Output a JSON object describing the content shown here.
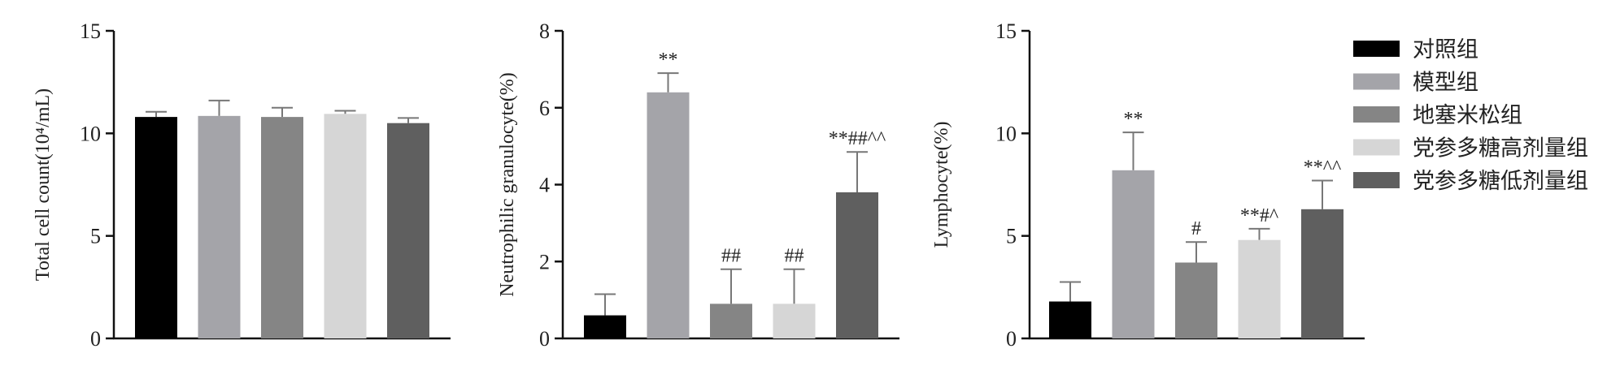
{
  "colors": {
    "对照组": "#000000",
    "模型组": "#a4a4a9",
    "地塞米松组": "#858585",
    "党参多糖高剂量组": "#d6d6d6",
    "党参多糖低剂量组": "#5f5f5f"
  },
  "legend": [
    "对照组",
    "模型组",
    "地塞米松组",
    "党参多糖高剂量组",
    "党参多糖低剂量组"
  ],
  "chart_data": [
    {
      "type": "bar",
      "title": "",
      "ylabel": "Total cell count(10⁴/mL)",
      "ylim": [
        0,
        15
      ],
      "yticks": [
        0,
        5,
        10,
        15
      ],
      "categories": [
        "对照组",
        "模型组",
        "地塞米松组",
        "党参多糖高剂量组",
        "党参多糖低剂量组"
      ],
      "values": [
        10.8,
        10.85,
        10.8,
        10.95,
        10.5
      ],
      "errors": [
        0.25,
        0.75,
        0.45,
        0.15,
        0.25
      ],
      "significance": [
        "",
        "",
        "",
        "",
        ""
      ]
    },
    {
      "type": "bar",
      "title": "",
      "ylabel": "Neutrophilic granulocyte(%)",
      "ylim": [
        0,
        8
      ],
      "yticks": [
        0,
        2,
        4,
        6,
        8
      ],
      "categories": [
        "对照组",
        "模型组",
        "地塞米松组",
        "党参多糖高剂量组",
        "党参多糖低剂量组"
      ],
      "values": [
        0.6,
        6.4,
        0.9,
        0.9,
        3.8
      ],
      "errors": [
        0.55,
        0.5,
        0.9,
        0.9,
        1.05
      ],
      "significance": [
        "",
        "**",
        "##",
        "##",
        "**##^^"
      ]
    },
    {
      "type": "bar",
      "title": "",
      "ylabel": "Lymphocyte(%)",
      "ylim": [
        0,
        15
      ],
      "yticks": [
        0,
        5,
        10,
        15
      ],
      "categories": [
        "对照组",
        "模型组",
        "地塞米松组",
        "党参多糖高剂量组",
        "党参多糖低剂量组"
      ],
      "values": [
        1.8,
        8.2,
        3.7,
        4.8,
        6.3
      ],
      "errors": [
        0.95,
        1.85,
        1.0,
        0.55,
        1.4
      ],
      "significance": [
        "",
        "**",
        "#",
        "**#^",
        "**^^"
      ]
    }
  ]
}
